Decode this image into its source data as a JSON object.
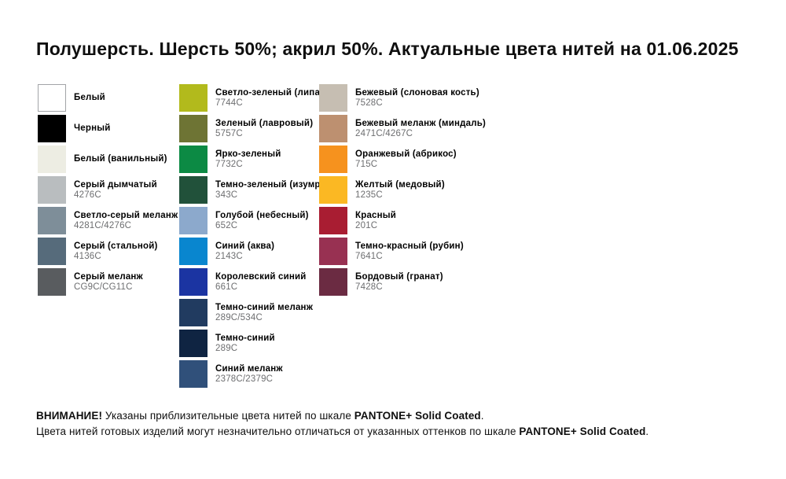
{
  "title": "Полушерсть. Шерсть 50%; акрил 50%. Актуальные цвета нитей на 01.06.2025",
  "columns": [
    {
      "items": [
        {
          "name": "Белый",
          "code": "",
          "hex": "#FFFFFF"
        },
        {
          "name": "Черный",
          "code": "",
          "hex": "#000000"
        },
        {
          "name": "Белый (ванильный)",
          "code": "",
          "hex": "#EDEDE3"
        },
        {
          "name": "Серый дымчатый",
          "code": "4276C",
          "hex": "#B9BDBF"
        },
        {
          "name": "Светло-серый меланж",
          "code": "4281C/4276C",
          "hex": "#7E8E99"
        },
        {
          "name": "Серый (стальной)",
          "code": "4136C",
          "hex": "#566B7B"
        },
        {
          "name": "Серый меланж",
          "code": "CG9C/CG11C",
          "hex": "#595C5F"
        }
      ]
    },
    {
      "items": [
        {
          "name": "Светло-зеленый (липа)",
          "code": "7744C",
          "hex": "#B2BA1C"
        },
        {
          "name": "Зеленый (лавровый)",
          "code": "5757C",
          "hex": "#6E7434"
        },
        {
          "name": "Ярко-зеленый",
          "code": "7732C",
          "hex": "#0C8A44"
        },
        {
          "name": "Темно-зеленый (изумруд)",
          "code": "343C",
          "hex": "#21513A"
        },
        {
          "name": "Голубой (небесный)",
          "code": "652C",
          "hex": "#8CA9CC"
        },
        {
          "name": "Синий (аква)",
          "code": "2143C",
          "hex": "#0986CF"
        },
        {
          "name": "Королевский синий",
          "code": "661C",
          "hex": "#1B34A2"
        },
        {
          "name": "Темно-синий меланж",
          "code": "289C/534C",
          "hex": "#213B60"
        },
        {
          "name": "Темно-синий",
          "code": "289C",
          "hex": "#0F2442"
        },
        {
          "name": "Синий меланж",
          "code": "2378C/2379C",
          "hex": "#30507A"
        }
      ]
    },
    {
      "items": [
        {
          "name": "Бежевый (слоновая кость)",
          "code": "7528C",
          "hex": "#C6BEB2"
        },
        {
          "name": "Бежевый меланж (миндаль)",
          "code": "2471C/4267C",
          "hex": "#BD9070"
        },
        {
          "name": "Оранжевый (абрикос)",
          "code": "715C",
          "hex": "#F6921E"
        },
        {
          "name": "Желтый (медовый)",
          "code": "1235C",
          "hex": "#FBB823"
        },
        {
          "name": "Красный",
          "code": "201C",
          "hex": "#A91D32"
        },
        {
          "name": "Темно-красный (рубин)",
          "code": "7641C",
          "hex": "#983152"
        },
        {
          "name": "Бордовый (гранат)",
          "code": "7428C",
          "hex": "#6B2B42"
        }
      ]
    }
  ],
  "note": {
    "line1": [
      {
        "text": "ВНИМАНИЕ!"
      },
      {
        "text": " Указаны приблизительные цвета нитей по шкале "
      },
      {
        "text": "PANTONE+ Solid Coated"
      },
      {
        "text": "."
      }
    ],
    "line2": [
      {
        "text": "Цвета нитей готовых изделий могут незначительно отличаться от указанных оттенков по шкале "
      },
      {
        "text": "PANTONE+ Solid Coated"
      },
      {
        "text": "."
      }
    ]
  }
}
